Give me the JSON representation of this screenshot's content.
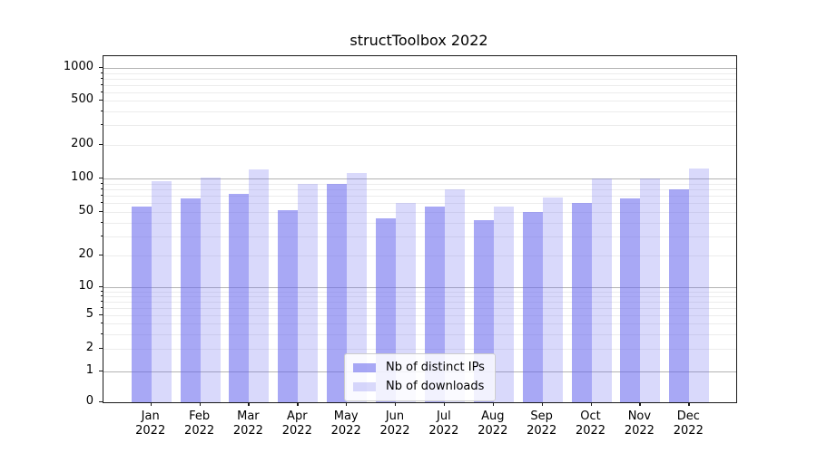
{
  "chart_data": {
    "type": "bar",
    "title": "structToolbox 2022",
    "categories": [
      "Jan 2022",
      "Feb 2022",
      "Mar 2022",
      "Apr 2022",
      "May 2022",
      "Jun 2022",
      "Jul 2022",
      "Aug 2022",
      "Sep 2022",
      "Oct 2022",
      "Nov 2022",
      "Dec 2022"
    ],
    "series": [
      {
        "name": "Nb of distinct IPs",
        "color": "rgba(102,102,238,0.57)",
        "values": [
          56,
          66,
          73,
          52,
          90,
          44,
          56,
          42,
          50,
          60,
          66,
          80
        ]
      },
      {
        "name": "Nb of downloads",
        "color": "rgba(102,102,238,0.25)",
        "values": [
          94,
          102,
          120,
          89,
          111,
          60,
          80,
          56,
          67,
          100,
          101,
          124
        ]
      }
    ],
    "xlabel": "",
    "ylabel": "",
    "y_axis": {
      "scale": "pseudo-log",
      "tick_labels": [
        "1000",
        "500",
        "200",
        "100",
        "50",
        "20",
        "10",
        "5",
        "2",
        "1",
        "0"
      ],
      "tick_values": [
        1000,
        500,
        200,
        100,
        50,
        20,
        10,
        5,
        2,
        1,
        0
      ],
      "minor_gridline_values": [
        2,
        3,
        4,
        5,
        6,
        7,
        8,
        9,
        20,
        30,
        40,
        50,
        60,
        70,
        80,
        90,
        200,
        300,
        400,
        500,
        600,
        700,
        800,
        900
      ],
      "major_gridline_values": [
        1,
        10,
        100,
        1000
      ]
    },
    "legend": {
      "position": "inside-bottom-center",
      "entries": [
        "Nb of distinct IPs",
        "Nb of downloads"
      ]
    },
    "grid": true
  },
  "colors": {
    "background": "#ffffff",
    "axis": "#1a1a1a",
    "major_grid": "#b3b3b3",
    "minor_grid": "#ececec",
    "bar_distinct_ips": "rgba(102,102,238,0.57)",
    "bar_downloads": "rgba(102,102,238,0.25)"
  }
}
